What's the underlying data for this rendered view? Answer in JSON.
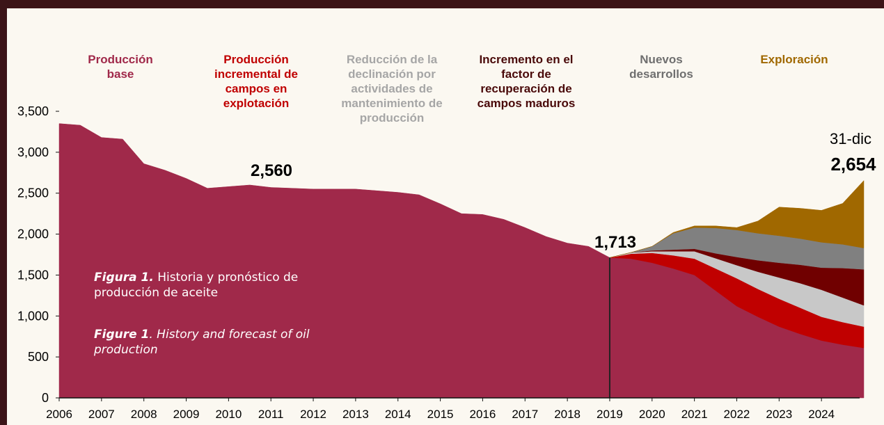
{
  "chart_data": {
    "type": "stacked-area",
    "x": [
      2006,
      2006.5,
      2007,
      2007.5,
      2008,
      2008.5,
      2009,
      2009.5,
      2010,
      2010.5,
      2011,
      2011.5,
      2012,
      2012.5,
      2013,
      2013.5,
      2014,
      2014.5,
      2015,
      2015.5,
      2016,
      2016.5,
      2017,
      2017.5,
      2018,
      2018.5,
      2019,
      2019.5,
      2020,
      2020.5,
      2021,
      2021.5,
      2022,
      2022.5,
      2023,
      2023.5,
      2024,
      2024.5,
      2025
    ],
    "series": [
      {
        "name": "Producción base",
        "color": "#a0294a",
        "values": [
          3350,
          3330,
          3180,
          3160,
          2860,
          2780,
          2680,
          2560,
          2580,
          2600,
          2570,
          2560,
          2550,
          2550,
          2550,
          2530,
          2510,
          2480,
          2370,
          2250,
          2240,
          2180,
          2080,
          1970,
          1890,
          1850,
          1713,
          1700,
          1650,
          1580,
          1500,
          1310,
          1120,
          990,
          870,
          780,
          700,
          650,
          610
        ]
      },
      {
        "name": "Producción incremental de campos en explotación",
        "color": "#c00000",
        "values": [
          null,
          null,
          null,
          null,
          null,
          null,
          null,
          null,
          null,
          null,
          null,
          null,
          null,
          null,
          null,
          null,
          null,
          null,
          null,
          null,
          null,
          null,
          null,
          null,
          null,
          null,
          0,
          60,
          120,
          160,
          200,
          270,
          340,
          340,
          340,
          320,
          290,
          275,
          260
        ]
      },
      {
        "name": "Reducción de la declinación por actividades de mantenimiento de producción",
        "color": "#c8c8c8",
        "label_color": "#a6a6a6",
        "values": [
          null,
          null,
          null,
          null,
          null,
          null,
          null,
          null,
          null,
          null,
          null,
          null,
          null,
          null,
          null,
          null,
          null,
          null,
          null,
          null,
          null,
          null,
          null,
          null,
          null,
          null,
          0,
          15,
          20,
          50,
          90,
          125,
          160,
          210,
          260,
          300,
          330,
          300,
          260
        ]
      },
      {
        "name": "Incremento en el factor de recuperación de campos maduros",
        "color": "#700000",
        "label_color": "#4a0a0a",
        "values": [
          null,
          null,
          null,
          null,
          null,
          null,
          null,
          null,
          null,
          null,
          null,
          null,
          null,
          null,
          null,
          null,
          null,
          null,
          null,
          null,
          null,
          null,
          null,
          null,
          null,
          null,
          0,
          0,
          10,
          20,
          30,
          60,
          100,
          140,
          180,
          225,
          270,
          360,
          440
        ]
      },
      {
        "name": "Nuevos desarrollos",
        "color": "#808080",
        "label_color": "#6f6f6f",
        "values": [
          null,
          null,
          null,
          null,
          null,
          null,
          null,
          null,
          null,
          null,
          null,
          null,
          null,
          null,
          null,
          null,
          null,
          null,
          null,
          null,
          null,
          null,
          null,
          null,
          null,
          null,
          0,
          0,
          50,
          200,
          260,
          310,
          330,
          330,
          330,
          320,
          310,
          290,
          260
        ]
      },
      {
        "name": "Exploración",
        "color": "#a06800",
        "values": [
          null,
          null,
          null,
          null,
          null,
          null,
          null,
          null,
          null,
          null,
          null,
          null,
          null,
          null,
          null,
          null,
          null,
          null,
          null,
          null,
          null,
          null,
          null,
          null,
          null,
          null,
          0,
          0,
          0,
          10,
          20,
          25,
          30,
          150,
          350,
          370,
          390,
          500,
          824
        ]
      }
    ],
    "xlim": [
      2006,
      2025
    ],
    "xticks": [
      2006,
      2007,
      2008,
      2009,
      2010,
      2011,
      2012,
      2013,
      2014,
      2015,
      2016,
      2017,
      2018,
      2019,
      2020,
      2021,
      2022,
      2023,
      2024
    ],
    "ylim": [
      0,
      3500
    ],
    "yticks": [
      0,
      {
        "value": 500,
        "label": "500"
      },
      {
        "value": 1000,
        "label": "1,000"
      },
      {
        "value": 1500,
        "label": "1,500"
      },
      {
        "value": 2000,
        "label": "2,000"
      },
      {
        "value": 2500,
        "label": "2,500"
      },
      {
        "value": 3000,
        "label": "3,000"
      },
      {
        "value": 3500,
        "label": "3,500"
      }
    ],
    "annotations": [
      "2,560",
      "1,713",
      "31-dic",
      "2,654"
    ],
    "caption": {
      "label_es": "Figura 1.",
      "text_es": "Historia y pronóstico de producción de aceite",
      "label_en": "Figure 1",
      "text_en": ". History and forecast of oil production"
    }
  }
}
